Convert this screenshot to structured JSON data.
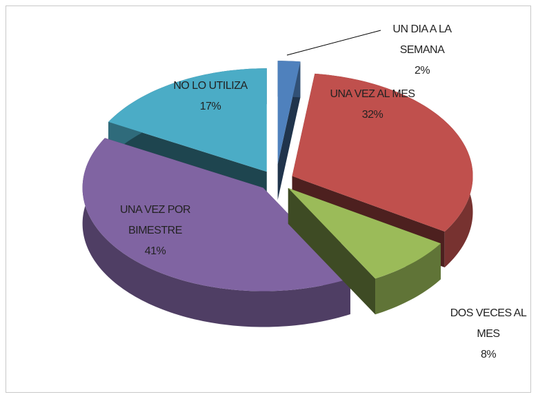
{
  "chart_data": {
    "type": "pie",
    "categories": [
      "UN DIA A LA SEMANA",
      "UNA VEZ AL MES",
      "DOS VECES AL MES",
      "UNA VEZ POR BIMESTRE",
      "NO LO UTILIZA"
    ],
    "values": [
      2,
      32,
      8,
      41,
      17
    ],
    "value_labels": [
      "2%",
      "32%",
      "8%",
      "41%",
      "17%"
    ],
    "colors": [
      "#4f81bd",
      "#c0504d",
      "#9bbb59",
      "#8064a2",
      "#4bacc6"
    ],
    "three_d": true,
    "exploded": true,
    "legend": false
  }
}
